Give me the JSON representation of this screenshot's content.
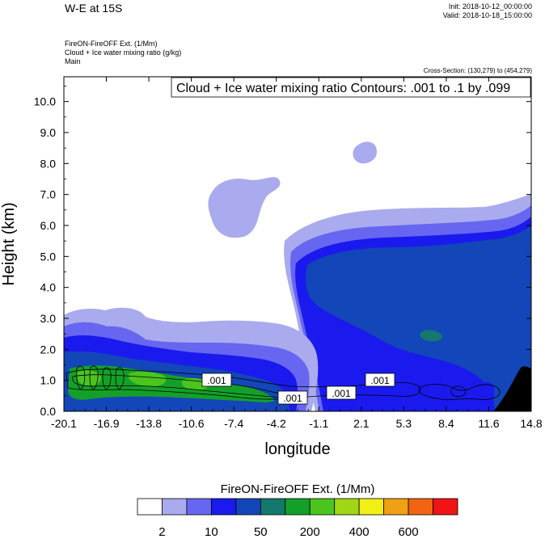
{
  "header": {
    "title": "W-E at 15S",
    "init": "Init: 2018-10-12_00:00:00",
    "valid": "Valid: 2018-10-18_15:00:00",
    "meta_lines": [
      "FireON-FireOFF Ext.   (1/Mm)",
      "Cloud + Ice water mixing ratio   (g/kg)",
      "Main"
    ],
    "cross_section": "Cross-Section: (130,279) to (454,279)"
  },
  "chart_data": {
    "type": "heatmap",
    "title": "W-E at 15S",
    "plot_label": "Cloud + Ice water mixing ratio Contours: .001 to .1 by .099",
    "xlabel": "longitude",
    "ylabel": "Height (km)",
    "x_ticks": [
      "-20.1",
      "-16.9",
      "-13.8",
      "-10.6",
      "-7.4",
      "-4.2",
      "-1.1",
      "2.1",
      "5.3",
      "8.4",
      "11.6",
      "14.8"
    ],
    "y_ticks": [
      "0.0",
      "1.0",
      "2.0",
      "3.0",
      "4.0",
      "5.0",
      "6.0",
      "7.0",
      "8.0",
      "9.0",
      "10.0"
    ],
    "ylim": [
      0,
      10.8
    ],
    "contour_labels": [
      ".001",
      ".001",
      ".001",
      ".001"
    ],
    "colorbar": {
      "title": "FireON-FireOFF Ext.  (1/Mm)",
      "tick_labels": [
        "2",
        "10",
        "50",
        "200",
        "400",
        "600"
      ],
      "colors": [
        "#ffffff",
        "#aaaaee",
        "#6666f0",
        "#1a1aee",
        "#1346b8",
        "#14786c",
        "#14a028",
        "#4cc41e",
        "#a0d614",
        "#f0f014",
        "#f0a014",
        "#f06414",
        "#f01414"
      ]
    }
  }
}
